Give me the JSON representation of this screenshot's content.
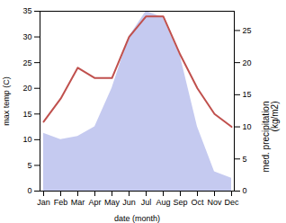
{
  "chart_data": {
    "type": "line",
    "categories": [
      "Jan",
      "Feb",
      "Mar",
      "Apr",
      "May",
      "Jun",
      "Jul",
      "Aug",
      "Sep",
      "Oct",
      "Nov",
      "Dec"
    ],
    "xlabel": "date (month)",
    "ylabel": "max temp (C)",
    "y2label": "med. precipitation\n(kg/m2)",
    "ylim": [
      0,
      35
    ],
    "yticks": [
      0,
      5,
      10,
      15,
      20,
      25,
      30,
      35
    ],
    "y2lim": [
      0,
      28
    ],
    "y2ticks": [
      0,
      5,
      10,
      15,
      20,
      25
    ],
    "grid": false,
    "series": [
      {
        "type": "area",
        "axis": "y2",
        "color": "#c5caf0",
        "values": [
          9.0,
          8.0,
          8.5,
          10.0,
          16.0,
          24.0,
          28.0,
          27.0,
          21.0,
          10.0,
          3.0,
          2.0
        ]
      },
      {
        "type": "line",
        "color": "#c0504d",
        "values": [
          13.5,
          18.0,
          24.0,
          22.0,
          22.0,
          30.0,
          34.0,
          34.0,
          26.5,
          20.0,
          15.0,
          12.5
        ]
      }
    ]
  }
}
